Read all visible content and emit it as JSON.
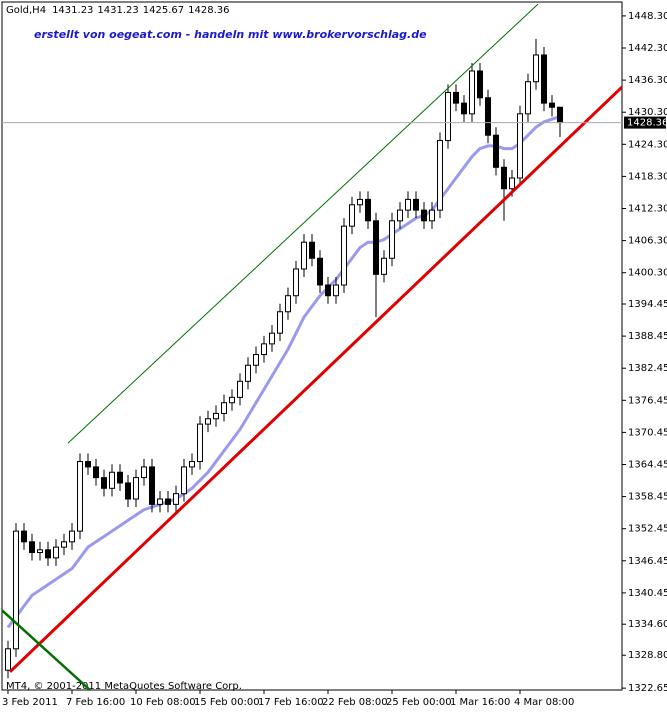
{
  "chart_data": {
    "type": "candlestick",
    "title": "Gold,H4",
    "annotation": "erstellt von oegeat.com - handeln mit www.brokervorschlag.de",
    "footer": "MT4, © 2001-2011 MetaQuotes Software Corp.",
    "categories": [
      "3 Feb 2011",
      null,
      null,
      null,
      null,
      null,
      null,
      null,
      "7 Feb 16:00",
      null,
      null,
      null,
      null,
      null,
      null,
      null,
      "10 Feb 08:00",
      null,
      null,
      null,
      null,
      null,
      null,
      null,
      "15 Feb 00:00",
      null,
      null,
      null,
      null,
      null,
      null,
      null,
      "17 Feb 16:00",
      null,
      null,
      null,
      null,
      null,
      null,
      null,
      "22 Feb 08:00",
      null,
      null,
      null,
      null,
      null,
      null,
      null,
      "25 Feb 00:00",
      null,
      null,
      null,
      null,
      null,
      null,
      null,
      "1 Mar 16:00",
      null,
      null,
      null,
      null,
      null,
      null,
      null,
      "4 Mar 08:00",
      null,
      null,
      null,
      null,
      null
    ],
    "open": [
      1326,
      1330,
      1352,
      1350,
      1348,
      1348.5,
      1347,
      1349,
      1350,
      1352,
      1365,
      1364,
      1362,
      1360,
      1363,
      1361,
      1358,
      1362,
      1364,
      1357,
      1358,
      1357,
      1359,
      1364,
      1365,
      1372,
      1373,
      1374,
      1376,
      1377,
      1380,
      1383,
      1385,
      1387,
      1389,
      1393,
      1396,
      1401,
      1406,
      1403,
      1398,
      1396,
      1398,
      1409,
      1413,
      1414,
      1410,
      1400,
      1403,
      1410,
      1412,
      1414,
      1412,
      1410,
      1412,
      1425,
      1434,
      1432,
      1430,
      1438,
      1433,
      1426,
      1420,
      1416,
      1418,
      1430,
      1436,
      1441,
      1432,
      1431.23
    ],
    "high": [
      1331.5,
      1353.5,
      1353.5,
      1351.5,
      1350,
      1350,
      1350.5,
      1351.5,
      1353.5,
      1366.5,
      1366.5,
      1365.5,
      1363.5,
      1364.5,
      1364.5,
      1362.5,
      1363.5,
      1365.5,
      1365.5,
      1359.5,
      1359.5,
      1360.5,
      1365.5,
      1366.5,
      1373.5,
      1374.5,
      1375.5,
      1377.5,
      1378.5,
      1381.5,
      1384.5,
      1386.5,
      1388.5,
      1390.5,
      1394.5,
      1397.5,
      1402.5,
      1407.5,
      1407.5,
      1404.5,
      1399.5,
      1399.5,
      1410.5,
      1414.5,
      1415.5,
      1415.5,
      1411.5,
      1404.5,
      1411.5,
      1413.5,
      1415.5,
      1415.5,
      1413.5,
      1413.5,
      1426.5,
      1435.5,
      1435.5,
      1433.5,
      1439.5,
      1439.5,
      1434.5,
      1427.5,
      1421.5,
      1419.5,
      1431.5,
      1437.5,
      1444,
      1442.5,
      1433.5,
      1431.23
    ],
    "low": [
      1324.5,
      1328.5,
      1348.5,
      1346.5,
      1346.5,
      1345.5,
      1345.5,
      1347.5,
      1348.5,
      1350.5,
      1362.5,
      1360.5,
      1358.5,
      1358.5,
      1359.5,
      1356.5,
      1356.5,
      1360.5,
      1355.5,
      1355.5,
      1355.5,
      1355.5,
      1357.5,
      1362.5,
      1363.5,
      1370.5,
      1371.5,
      1372.5,
      1374.5,
      1375.5,
      1378.5,
      1381.5,
      1383.5,
      1385.5,
      1387.5,
      1391.5,
      1394.5,
      1399.5,
      1401.5,
      1396.5,
      1394.5,
      1394.5,
      1396.5,
      1407.5,
      1411.5,
      1408.5,
      1392,
      1398.5,
      1401.5,
      1408.5,
      1410.5,
      1410.5,
      1408.5,
      1408.5,
      1410.5,
      1423.5,
      1430.5,
      1428.5,
      1428.5,
      1431.5,
      1424.5,
      1418.5,
      1410,
      1414.5,
      1416.5,
      1428.5,
      1434.5,
      1430.5,
      1429.5,
      1425.67
    ],
    "close": [
      1330,
      1352,
      1350,
      1348,
      1348.5,
      1347,
      1349,
      1350,
      1352,
      1365,
      1364,
      1362,
      1360,
      1363,
      1361,
      1358,
      1362,
      1364,
      1357,
      1358,
      1357,
      1359,
      1364,
      1365,
      1372,
      1373,
      1374,
      1376,
      1377,
      1380,
      1383,
      1385,
      1387,
      1389,
      1393,
      1396,
      1401,
      1406,
      1403,
      1398,
      1396,
      1398,
      1409,
      1413,
      1414,
      1410,
      1400,
      1403,
      1410,
      1412,
      1414,
      1412,
      1410,
      1412,
      1425,
      1434,
      1432,
      1430,
      1438,
      1433,
      1426,
      1420,
      1416,
      1418,
      1430,
      1436,
      1441,
      1432,
      1431.23,
      1428.36
    ],
    "up_color": "#ffffff",
    "down_color": "#000000",
    "ma": {
      "color": "#9999ee",
      "values": [
        1334,
        1336,
        1338,
        1340,
        1341,
        1342,
        1343,
        1344,
        1345,
        1347,
        1349,
        1350,
        1351,
        1352,
        1353,
        1354,
        1355,
        1356,
        1356.5,
        1357,
        1357.5,
        1358,
        1359,
        1360,
        1361.5,
        1363,
        1365,
        1367,
        1369,
        1371,
        1373.5,
        1376,
        1378.5,
        1381,
        1383.5,
        1386,
        1389,
        1392,
        1394,
        1396,
        1397.5,
        1399,
        1401,
        1403,
        1405,
        1406,
        1406,
        1406.5,
        1407.5,
        1408.5,
        1409.5,
        1410.5,
        1411,
        1412,
        1414,
        1416,
        1418,
        1420,
        1422,
        1423.5,
        1424,
        1424,
        1423.5,
        1423.5,
        1424.5,
        1426,
        1427.5,
        1428.5,
        1429,
        1429.5
      ]
    },
    "trendlines": [
      {
        "color": "#e00000",
        "x": [
          0.25,
          76.75
        ],
        "values": [
          1325.7,
          1435
        ]
      },
      {
        "color": "#007000",
        "x": [
          7.5,
          66.25
        ],
        "values": [
          1368.45,
          1450.5
        ]
      },
      {
        "color": "#007000",
        "x": [
          -0.75,
          10.25
        ],
        "values": [
          1337.2,
          1322.3
        ]
      }
    ],
    "ylim": [
      1322.3,
      1450.9
    ],
    "yticks": [
      {
        "value": 1322.65,
        "label": "1322.65"
      },
      {
        "value": 1328.8,
        "label": "1328.80"
      },
      {
        "value": 1334.6,
        "label": "1334.60"
      },
      {
        "value": 1340.45,
        "label": "1340.45"
      },
      {
        "value": 1346.45,
        "label": "1346.45"
      },
      {
        "value": 1352.45,
        "label": "1352.45"
      },
      {
        "value": 1358.45,
        "label": "1358.45"
      },
      {
        "value": 1364.45,
        "label": "1364.45"
      },
      {
        "value": 1370.45,
        "label": "1370.45"
      },
      {
        "value": 1376.45,
        "label": "1376.45"
      },
      {
        "value": 1382.45,
        "label": "1382.45"
      },
      {
        "value": 1388.45,
        "label": "1388.45"
      },
      {
        "value": 1394.45,
        "label": "1394.45"
      },
      {
        "value": 1400.3,
        "label": "1400.30"
      },
      {
        "value": 1406.3,
        "label": "1406.30"
      },
      {
        "value": 1412.3,
        "label": "1412.30"
      },
      {
        "value": 1418.3,
        "label": "1418.30"
      },
      {
        "value": 1424.3,
        "label": "1424.30"
      },
      {
        "value": 1430.3,
        "label": "1430.30"
      },
      {
        "value": 1436.3,
        "label": "1436.30"
      },
      {
        "value": 1442.3,
        "label": "1442.30"
      },
      {
        "value": 1448.3,
        "label": "1448.30"
      }
    ]
  }
}
